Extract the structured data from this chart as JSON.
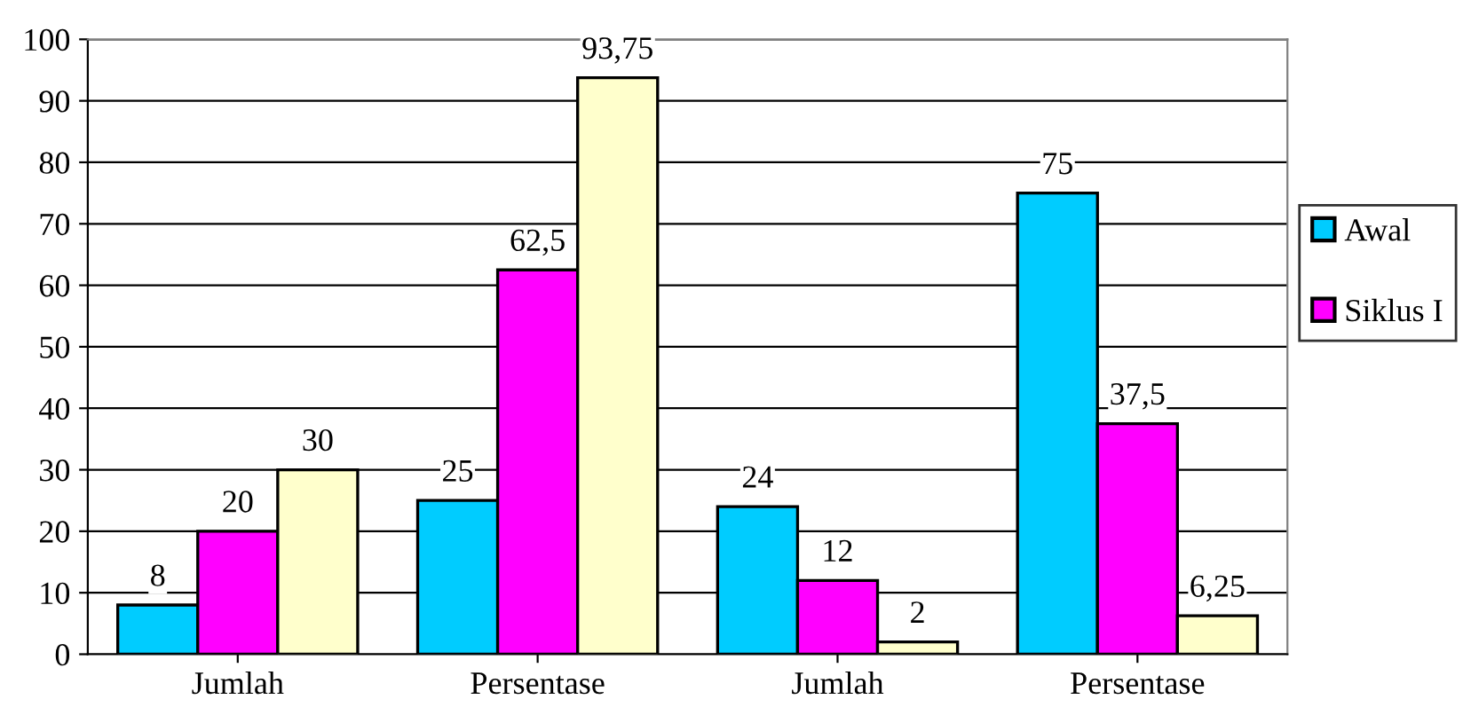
{
  "chart_data": {
    "type": "bar",
    "categories": [
      "Jumlah",
      "Persentase",
      "Jumlah",
      "Persentase"
    ],
    "series": [
      {
        "name": "Awal",
        "color": "#00ccff",
        "values": [
          8,
          25,
          24,
          75
        ],
        "value_labels": [
          "8",
          "25",
          "24",
          "75"
        ]
      },
      {
        "name": "Siklus I",
        "color": "#ff00ff",
        "values": [
          20,
          62.5,
          12,
          37.5
        ],
        "value_labels": [
          "20",
          "62,5",
          "12",
          "37,5"
        ]
      },
      {
        "color": "#ffffcc",
        "values": [
          30,
          93.75,
          2,
          6.25
        ],
        "value_labels": [
          "30",
          "93,75",
          "2",
          "6,25"
        ]
      }
    ],
    "ylim": [
      0,
      100
    ],
    "yticks": [
      0,
      10,
      20,
      30,
      40,
      50,
      60,
      70,
      80,
      90,
      100
    ],
    "grid": "y",
    "legend": "right"
  }
}
